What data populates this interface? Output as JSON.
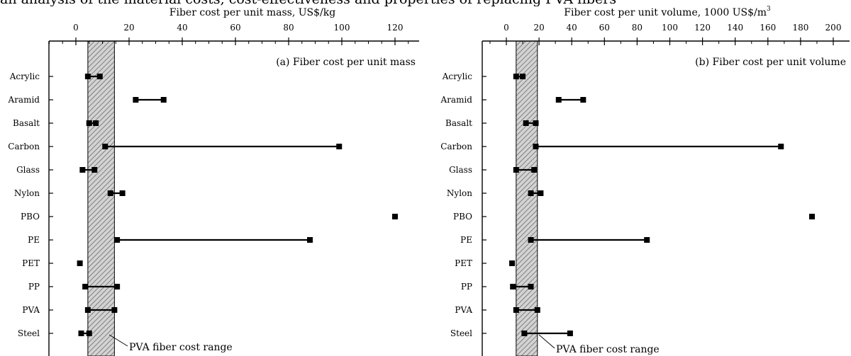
{
  "caption_fragment": "an analysis of the material costs, cost-effectiveness and properties of replacing PVA fibers",
  "hatch_label": "PVA fiber cost range",
  "chart_data": [
    {
      "type": "range",
      "panel_label": "(a) Fiber cost per unit mass",
      "axis_title": "Fiber cost per unit mass, US$/kg",
      "xlim": [
        -10,
        130
      ],
      "x_ticks": [
        0,
        20,
        40,
        60,
        80,
        100,
        120
      ],
      "x_minor_step": 5,
      "categories": [
        "Acrylic",
        "Aramid",
        "Basalt",
        "Carbon",
        "Glass",
        "Nylon",
        "PBO",
        "PE",
        "PET",
        "PP",
        "PVA",
        "Steel"
      ],
      "ranges": [
        [
          4.5,
          9
        ],
        [
          22.5,
          33
        ],
        [
          5,
          7.5
        ],
        [
          11,
          99
        ],
        [
          2.5,
          7
        ],
        [
          13,
          17.5
        ],
        [
          120,
          120
        ],
        [
          15.5,
          88
        ],
        [
          1.5,
          1.5
        ],
        [
          3.5,
          15.5
        ],
        [
          4.5,
          14.5
        ],
        [
          2,
          5
        ]
      ],
      "shaded_band": [
        4.5,
        14.5
      ]
    },
    {
      "type": "range",
      "panel_label": "(b) Fiber cost per unit volume",
      "axis_title": "Fiber cost per unit volume, 1000 US$/m",
      "axis_title_sup": "3",
      "xlim": [
        -20,
        205
      ],
      "x_ticks": [
        0,
        20,
        40,
        60,
        80,
        100,
        120,
        140,
        160,
        180,
        200
      ],
      "x_minor_step": 10,
      "categories": [
        "Acrylic",
        "Aramid",
        "Basalt",
        "Carbon",
        "Glass",
        "Nylon",
        "PBO",
        "PE",
        "PET",
        "PP",
        "PVA",
        "Steel"
      ],
      "ranges": [
        [
          6,
          10
        ],
        [
          32,
          47
        ],
        [
          12,
          18
        ],
        [
          18,
          168
        ],
        [
          6,
          17
        ],
        [
          15,
          21
        ],
        [
          187,
          187
        ],
        [
          15,
          86
        ],
        [
          3.5,
          3.5
        ],
        [
          4,
          15
        ],
        [
          6,
          19
        ],
        [
          11,
          39
        ]
      ],
      "shaded_band": [
        6,
        19
      ]
    }
  ]
}
